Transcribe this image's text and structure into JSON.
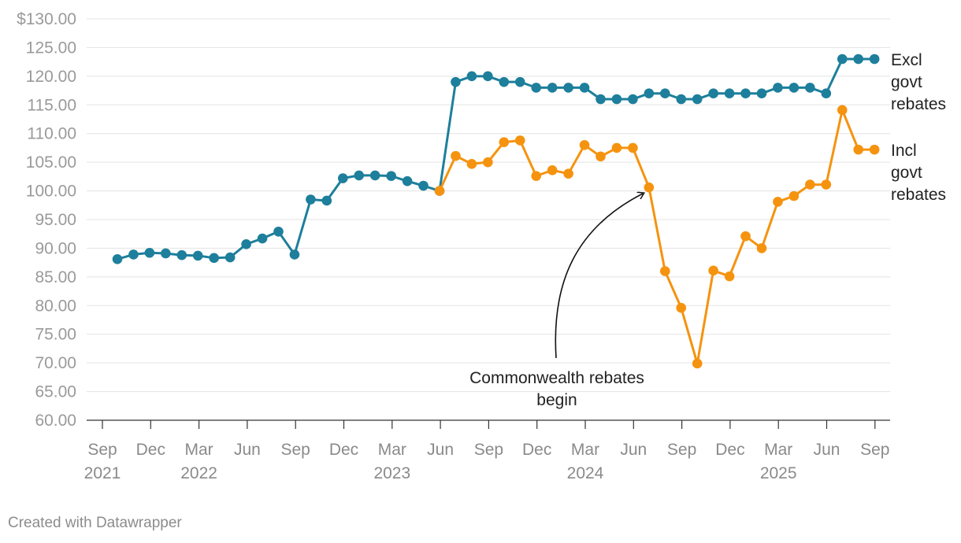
{
  "chart_data": {
    "type": "line",
    "title": "",
    "xlabel": "",
    "ylabel": "",
    "ylim": [
      60,
      130
    ],
    "y_ticks": [
      "$130.00",
      "125.00",
      "120.00",
      "115.00",
      "110.00",
      "105.00",
      "100.00",
      "95.00",
      "90.00",
      "85.00",
      "80.00",
      "75.00",
      "70.00",
      "65.00",
      "60.00"
    ],
    "y_tick_values": [
      130,
      125,
      120,
      115,
      110,
      105,
      100,
      95,
      90,
      85,
      80,
      75,
      70,
      65,
      60
    ],
    "x_ticks": [
      {
        "month": "Sep",
        "year": "2021"
      },
      {
        "month": "Dec",
        "year": ""
      },
      {
        "month": "Mar",
        "year": "2022"
      },
      {
        "month": "Jun",
        "year": ""
      },
      {
        "month": "Sep",
        "year": ""
      },
      {
        "month": "Dec",
        "year": ""
      },
      {
        "month": "Mar",
        "year": "2023"
      },
      {
        "month": "Jun",
        "year": ""
      },
      {
        "month": "Sep",
        "year": ""
      },
      {
        "month": "Dec",
        "year": ""
      },
      {
        "month": "Mar",
        "year": "2024"
      },
      {
        "month": "Jun",
        "year": ""
      },
      {
        "month": "Sep",
        "year": ""
      },
      {
        "month": "Dec",
        "year": ""
      },
      {
        "month": "Mar",
        "year": "2025"
      },
      {
        "month": "Jun",
        "year": ""
      },
      {
        "month": "Sep",
        "year": ""
      }
    ],
    "series": [
      {
        "name": "Excl govt rebates",
        "label_lines": [
          "Excl",
          "govt",
          "rebates"
        ],
        "color": "#1d7f9b",
        "points": [
          [
            0,
            88.1
          ],
          [
            1,
            88.9
          ],
          [
            2,
            89.2
          ],
          [
            3,
            89.1
          ],
          [
            4,
            88.8
          ],
          [
            5,
            88.7
          ],
          [
            6,
            88.3
          ],
          [
            7,
            88.4
          ],
          [
            8,
            90.7
          ],
          [
            9,
            91.7
          ],
          [
            10,
            92.9
          ],
          [
            11,
            88.9
          ],
          [
            12,
            98.5
          ],
          [
            13,
            98.3
          ],
          [
            14,
            102.2
          ],
          [
            15,
            102.7
          ],
          [
            16,
            102.7
          ],
          [
            17,
            102.6
          ],
          [
            18,
            101.7
          ],
          [
            19,
            100.9
          ],
          [
            20,
            100.0
          ],
          [
            21,
            119.0
          ],
          [
            22,
            120.0
          ],
          [
            23,
            120.0
          ],
          [
            24,
            119.0
          ],
          [
            25,
            119.0
          ],
          [
            26,
            118.0
          ],
          [
            27,
            118.0
          ],
          [
            28,
            118.0
          ],
          [
            29,
            118.0
          ],
          [
            30,
            116.0
          ],
          [
            31,
            116.0
          ],
          [
            32,
            116.0
          ],
          [
            33,
            117.0
          ],
          [
            34,
            117.0
          ],
          [
            35,
            116.0
          ],
          [
            36,
            116.0
          ],
          [
            37,
            117.0
          ],
          [
            38,
            117.0
          ],
          [
            39,
            117.0
          ],
          [
            40,
            117.0
          ],
          [
            41,
            118.0
          ],
          [
            42,
            118.0
          ],
          [
            43,
            118.0
          ],
          [
            44,
            117.0
          ],
          [
            45,
            123.0
          ],
          [
            46,
            123.0
          ],
          [
            47,
            123.0
          ]
        ]
      },
      {
        "name": "Incl govt rebates",
        "label_lines": [
          "Incl",
          "govt",
          "rebates"
        ],
        "color": "#f5930f",
        "points": [
          [
            20,
            100.0
          ],
          [
            21,
            106.1
          ],
          [
            22,
            104.7
          ],
          [
            23,
            105.0
          ],
          [
            24,
            108.5
          ],
          [
            25,
            108.8
          ],
          [
            26,
            102.6
          ],
          [
            27,
            103.6
          ],
          [
            28,
            103.0
          ],
          [
            29,
            108.0
          ],
          [
            30,
            106.0
          ],
          [
            31,
            107.5
          ],
          [
            32,
            107.5
          ],
          [
            33,
            100.6
          ],
          [
            34,
            86.0
          ],
          [
            35,
            79.6
          ],
          [
            36,
            69.9
          ],
          [
            37,
            86.1
          ],
          [
            38,
            85.1
          ],
          [
            39,
            92.1
          ],
          [
            40,
            90.0
          ],
          [
            41,
            98.1
          ],
          [
            42,
            99.1
          ],
          [
            43,
            101.1
          ],
          [
            44,
            101.1
          ],
          [
            45,
            114.1
          ],
          [
            46,
            107.2
          ],
          [
            47,
            107.2
          ]
        ]
      }
    ],
    "annotation": {
      "lines": [
        "Commonwealth rebates",
        "begin"
      ],
      "points_to_index": 33
    }
  },
  "footer": "Created with Datawrapper"
}
